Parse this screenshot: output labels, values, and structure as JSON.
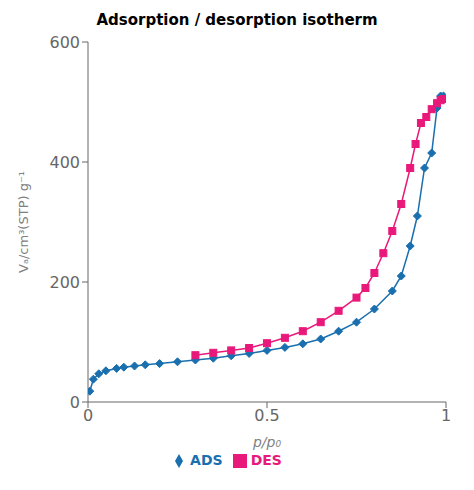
{
  "chart_data": {
    "type": "line",
    "title": "Adsorption / desorption isotherm",
    "x_label": "p/p₀",
    "y_label": "Vₐ/cm³(STP) g⁻¹",
    "xlim": [
      0,
      1.0
    ],
    "ylim": [
      0,
      600
    ],
    "xticks": [
      0,
      0.5,
      1
    ],
    "yticks": [
      0,
      200,
      400,
      600
    ],
    "grid": false,
    "legend": "bottom",
    "series": [
      {
        "name": "ADS",
        "color": "#1a6faf",
        "marker": "diamond",
        "x": [
          0.005,
          0.015,
          0.03,
          0.05,
          0.08,
          0.1,
          0.13,
          0.16,
          0.2,
          0.25,
          0.3,
          0.35,
          0.4,
          0.45,
          0.5,
          0.55,
          0.6,
          0.65,
          0.7,
          0.75,
          0.8,
          0.85,
          0.875,
          0.9,
          0.92,
          0.94,
          0.96,
          0.975,
          0.985,
          0.993
        ],
        "values": [
          18,
          38,
          47,
          52,
          56,
          58,
          60,
          62,
          64,
          67,
          70,
          73,
          77,
          81,
          86,
          91,
          97,
          105,
          118,
          133,
          155,
          185,
          210,
          260,
          310,
          390,
          415,
          490,
          510,
          510
        ]
      },
      {
        "name": "DES",
        "color": "#e8197a",
        "marker": "square",
        "x": [
          0.3,
          0.35,
          0.4,
          0.45,
          0.5,
          0.55,
          0.6,
          0.65,
          0.7,
          0.75,
          0.775,
          0.8,
          0.825,
          0.85,
          0.875,
          0.9,
          0.915,
          0.93,
          0.945,
          0.96,
          0.975,
          0.985,
          0.993
        ],
        "values": [
          78,
          82,
          86,
          90,
          98,
          107,
          118,
          133,
          152,
          174,
          190,
          215,
          248,
          285,
          330,
          390,
          430,
          465,
          475,
          488,
          498,
          503,
          505
        ]
      }
    ]
  }
}
